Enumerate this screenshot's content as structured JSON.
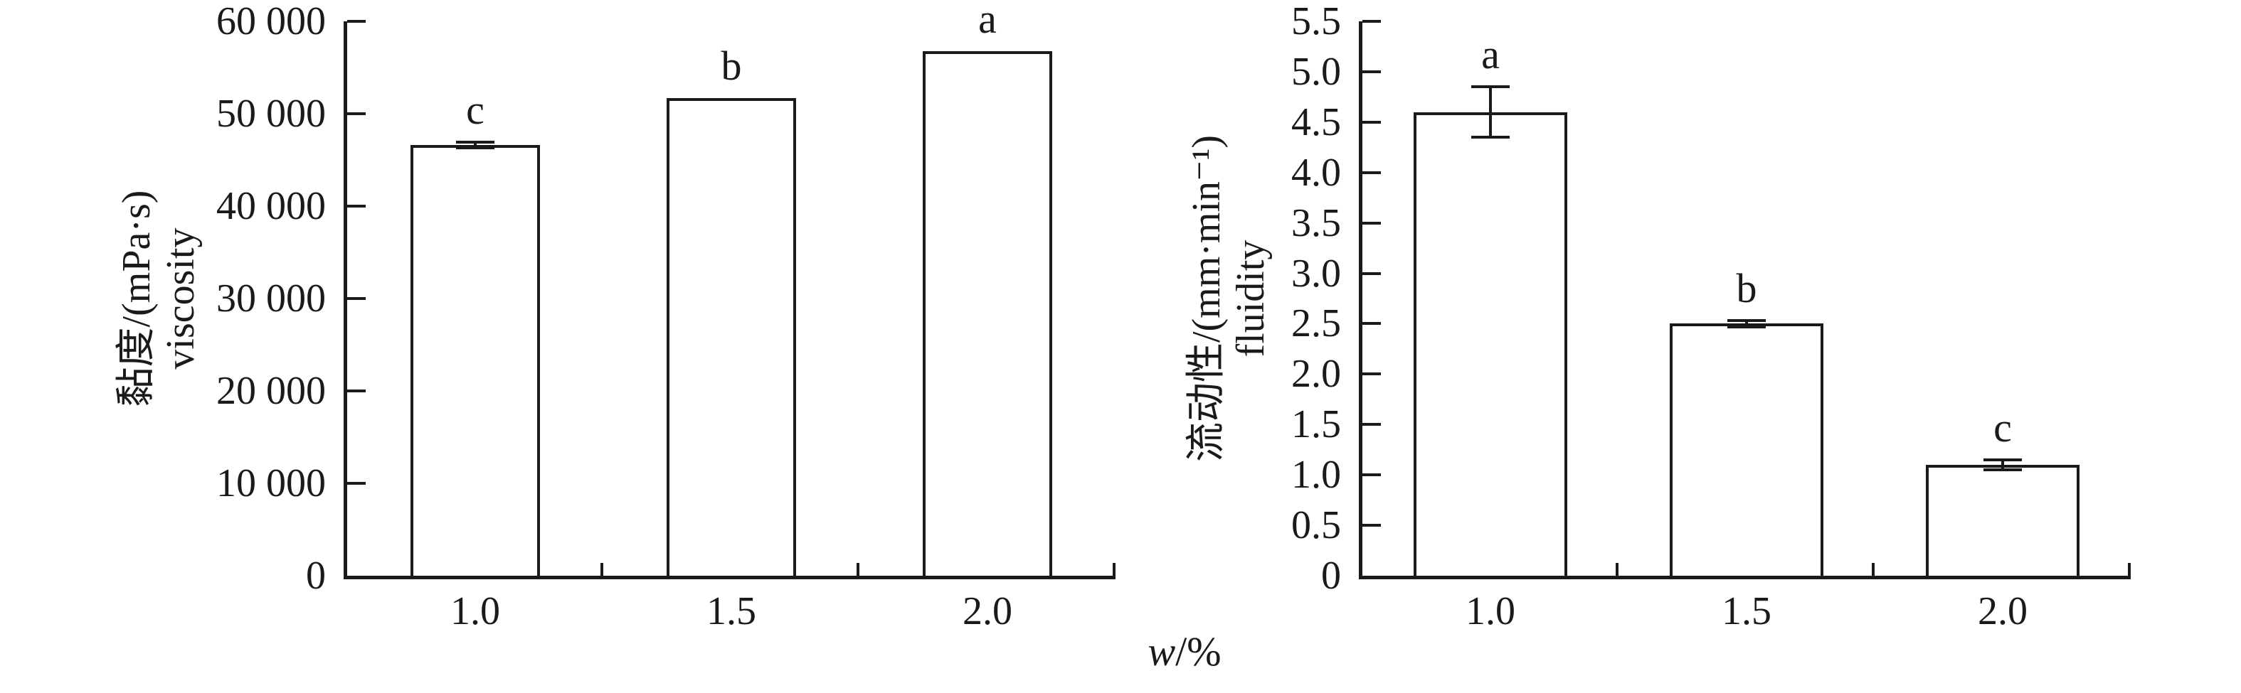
{
  "figure": {
    "background": "#ffffff",
    "ink_color": "#1a1a1a",
    "xlabel": {
      "symbol": "w",
      "rest": "/%"
    }
  },
  "chart_data": [
    {
      "type": "bar",
      "panel": "left",
      "title": "",
      "ylabel_cn": "黏度/(mPa·s)",
      "ylabel_en": "viscosity",
      "xlabel": "w/%",
      "categories": [
        "1.0",
        "1.5",
        "2.0"
      ],
      "values": [
        46600,
        51700,
        56800
      ],
      "errors": [
        300,
        0,
        0
      ],
      "sig_letters": [
        "c",
        "b",
        "a"
      ],
      "ylim": [
        0,
        60000
      ],
      "ytick_step": 10000,
      "ytick_labels": [
        "0",
        "10 000",
        "20 000",
        "30 000",
        "40 000",
        "50 000",
        "60 000"
      ],
      "grid": false,
      "legend": null,
      "bar_fill": "#ffffff",
      "bar_edge": "#1a1a1a"
    },
    {
      "type": "bar",
      "panel": "right",
      "title": "",
      "ylabel_cn": "流动性/(mm·min⁻¹)",
      "ylabel_en": "fluidity",
      "xlabel": "w/%",
      "categories": [
        "1.0",
        "1.5",
        "2.0"
      ],
      "values": [
        4.6,
        2.5,
        1.1
      ],
      "errors": [
        0.25,
        0.03,
        0.05
      ],
      "sig_letters": [
        "a",
        "b",
        "c"
      ],
      "ylim": [
        0,
        5.5
      ],
      "ytick_step": 0.5,
      "ytick_labels": [
        "0",
        "0.5",
        "1.0",
        "1.5",
        "2.0",
        "2.5",
        "3.0",
        "3.5",
        "4.0",
        "4.5",
        "5.0",
        "5.5"
      ],
      "grid": false,
      "legend": null,
      "bar_fill": "#ffffff",
      "bar_edge": "#1a1a1a"
    }
  ]
}
